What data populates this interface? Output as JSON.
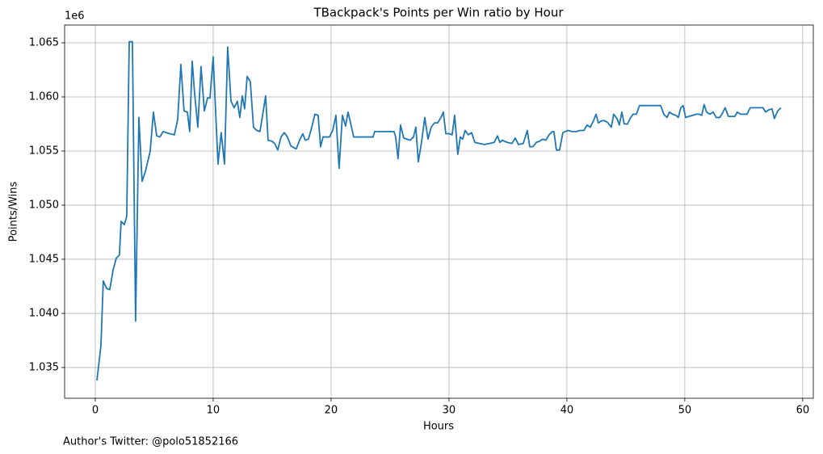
{
  "chart_data": {
    "type": "line",
    "title": "TBackpack's Points per Win ratio by Hour",
    "xlabel": "Hours",
    "ylabel": "Points/Wins",
    "y_offset_label": "1e6",
    "footnote": "Author's Twitter: @polo51852166",
    "color": "#1f77b4",
    "grid": true,
    "xlim": [
      -2.6,
      60.9
    ],
    "ylim": [
      1.03216,
      1.06664
    ],
    "xticks": [
      0,
      10,
      20,
      30,
      40,
      50,
      60
    ],
    "yticks": [
      {
        "value": 1.035,
        "label": "1.035"
      },
      {
        "value": 1.04,
        "label": "1.040"
      },
      {
        "value": 1.045,
        "label": "1.045"
      },
      {
        "value": 1.05,
        "label": "1.050"
      },
      {
        "value": 1.055,
        "label": "1.055"
      },
      {
        "value": 1.06,
        "label": "1.060"
      },
      {
        "value": 1.065,
        "label": "1.065"
      }
    ],
    "x": [
      0.14,
      0.48,
      0.68,
      0.96,
      1.23,
      1.51,
      1.78,
      2.05,
      2.19,
      2.47,
      2.67,
      2.88,
      3.15,
      3.42,
      3.7,
      3.97,
      4.25,
      4.66,
      4.93,
      5.21,
      5.48,
      5.75,
      6.3,
      6.71,
      6.99,
      7.26,
      7.53,
      7.81,
      8.01,
      8.22,
      8.42,
      8.7,
      8.97,
      9.25,
      9.52,
      9.73,
      10.0,
      10.41,
      10.68,
      10.96,
      11.23,
      11.51,
      11.78,
      12.05,
      12.26,
      12.47,
      12.67,
      12.88,
      13.15,
      13.42,
      13.7,
      13.97,
      14.25,
      14.45,
      14.66,
      15.0,
      15.21,
      15.48,
      15.75,
      16.03,
      16.3,
      16.58,
      16.85,
      17.05,
      17.33,
      17.6,
      17.81,
      18.08,
      18.36,
      18.63,
      18.9,
      19.11,
      19.32,
      19.59,
      19.86,
      20.14,
      20.41,
      20.68,
      20.96,
      21.23,
      21.44,
      21.92,
      22.74,
      23.56,
      23.7,
      24.52,
      25.34,
      25.48,
      25.68,
      25.89,
      26.16,
      26.44,
      26.71,
      26.99,
      27.19,
      27.4,
      27.67,
      27.95,
      28.22,
      28.49,
      28.77,
      29.04,
      29.32,
      29.52,
      29.73,
      30.0,
      30.27,
      30.48,
      30.75,
      30.96,
      31.16,
      31.37,
      31.64,
      31.92,
      32.19,
      32.6,
      33.01,
      33.42,
      33.84,
      34.11,
      34.32,
      34.52,
      34.93,
      35.34,
      35.62,
      35.89,
      36.3,
      36.64,
      36.85,
      37.12,
      37.4,
      37.67,
      37.95,
      38.22,
      38.49,
      38.77,
      38.9,
      39.11,
      39.38,
      39.66,
      40.07,
      40.48,
      40.82,
      41.1,
      41.44,
      41.71,
      41.99,
      42.26,
      42.47,
      42.67,
      42.95,
      43.22,
      43.49,
      43.77,
      43.97,
      44.25,
      44.45,
      44.66,
      44.86,
      45.14,
      45.41,
      45.62,
      45.89,
      46.16,
      46.71,
      47.4,
      47.95,
      48.22,
      48.49,
      48.7,
      48.97,
      49.25,
      49.45,
      49.66,
      49.86,
      50.07,
      50.34,
      50.68,
      50.96,
      51.23,
      51.44,
      51.64,
      51.85,
      52.12,
      52.4,
      52.67,
      52.95,
      53.15,
      53.42,
      53.7,
      53.97,
      54.25,
      54.45,
      54.73,
      55.0,
      55.27,
      55.55,
      55.96,
      56.37,
      56.64,
      56.85,
      57.12,
      57.4,
      57.6,
      57.88,
      58.15
    ],
    "values": [
      1.0338,
      1.037,
      1.043,
      1.0423,
      1.0422,
      1.044,
      1.0451,
      1.0454,
      1.0485,
      1.0482,
      1.049,
      1.0651,
      1.0651,
      1.0393,
      1.0581,
      1.0522,
      1.0531,
      1.055,
      1.0586,
      1.0564,
      1.0563,
      1.0568,
      1.0566,
      1.0565,
      1.0579,
      1.063,
      1.0587,
      1.0586,
      1.0568,
      1.0633,
      1.0604,
      1.0572,
      1.0628,
      1.0587,
      1.0599,
      1.0599,
      1.0637,
      1.0538,
      1.0567,
      1.0538,
      1.0646,
      1.0596,
      1.059,
      1.0596,
      1.0581,
      1.0601,
      1.0589,
      1.0619,
      1.0614,
      1.0572,
      1.0569,
      1.0568,
      1.0587,
      1.0601,
      1.056,
      1.0559,
      1.0557,
      1.0551,
      1.0563,
      1.0567,
      1.0563,
      1.0555,
      1.0553,
      1.0552,
      1.056,
      1.0566,
      1.056,
      1.0561,
      1.0572,
      1.0584,
      1.0583,
      1.0554,
      1.0563,
      1.0563,
      1.0563,
      1.0569,
      1.0583,
      1.0534,
      1.0583,
      1.0573,
      1.0586,
      1.0563,
      1.0563,
      1.0563,
      1.0568,
      1.0568,
      1.0568,
      1.0563,
      1.0543,
      1.0574,
      1.0562,
      1.0561,
      1.056,
      1.0563,
      1.0572,
      1.054,
      1.0558,
      1.0581,
      1.0561,
      1.0572,
      1.0576,
      1.0576,
      1.0581,
      1.0586,
      1.0566,
      1.0566,
      1.0565,
      1.0583,
      1.0547,
      1.0563,
      1.0561,
      1.0569,
      1.0565,
      1.0567,
      1.0558,
      1.0557,
      1.0556,
      1.0557,
      1.0558,
      1.0564,
      1.0558,
      1.056,
      1.0558,
      1.0557,
      1.0562,
      1.0556,
      1.0557,
      1.0569,
      1.0554,
      1.0554,
      1.0558,
      1.0559,
      1.0561,
      1.056,
      1.0565,
      1.0568,
      1.0568,
      1.0551,
      1.0551,
      1.0567,
      1.0569,
      1.0568,
      1.0568,
      1.0569,
      1.0569,
      1.0574,
      1.0572,
      1.0578,
      1.0584,
      1.0576,
      1.0578,
      1.0578,
      1.0576,
      1.0572,
      1.0584,
      1.058,
      1.0574,
      1.0586,
      1.0575,
      1.0575,
      1.0581,
      1.0584,
      1.0584,
      1.0592,
      1.0592,
      1.0592,
      1.0592,
      1.0584,
      1.0581,
      1.0586,
      1.0584,
      1.0583,
      1.0581,
      1.059,
      1.0592,
      1.0581,
      1.0582,
      1.0583,
      1.0584,
      1.0584,
      1.0583,
      1.0593,
      1.0586,
      1.0584,
      1.0586,
      1.0581,
      1.0581,
      1.0584,
      1.059,
      1.0582,
      1.0582,
      1.0582,
      1.0586,
      1.0584,
      1.0584,
      1.0584,
      1.059,
      1.059,
      1.059,
      1.059,
      1.0586,
      1.0588,
      1.0589,
      1.058,
      1.0587,
      1.059
    ]
  }
}
